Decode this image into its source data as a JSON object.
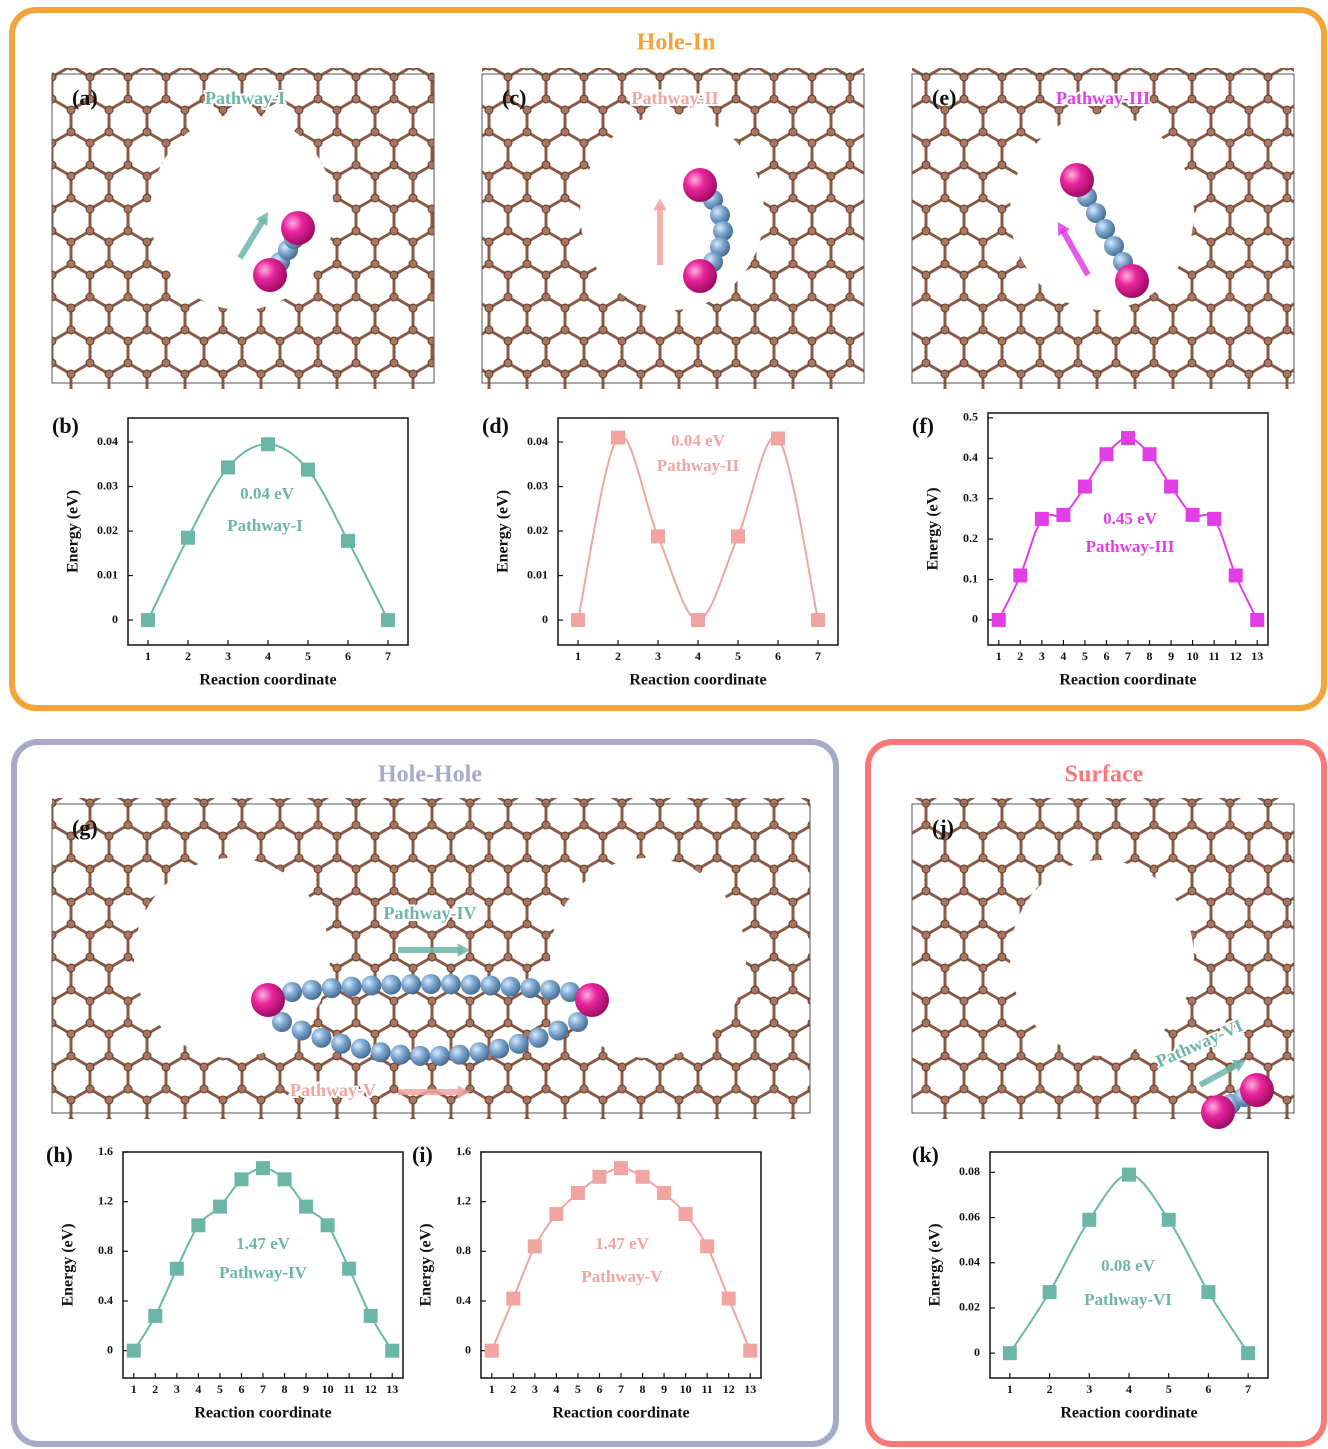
{
  "sections": [
    {
      "title": "Hole-In"
    },
    {
      "title": "Hole-Hole"
    },
    {
      "title": "Surface"
    }
  ],
  "structures": [
    {
      "label": "(a)",
      "pathways": [
        "Pathway-I"
      ]
    },
    {
      "label": "(c)",
      "pathways": [
        "Pathway-II"
      ]
    },
    {
      "label": "(e)",
      "pathways": [
        "Pathway-III"
      ]
    },
    {
      "label": "(g)",
      "pathways": [
        "Pathway-IV",
        "Pathway-V"
      ]
    },
    {
      "label": "(j)",
      "pathways": [
        "Pathway-VI"
      ]
    }
  ],
  "chart_data": [
    {
      "type": "line",
      "label": "(b)",
      "x_label": "Reaction coordinate",
      "y_label": "Energy (eV)",
      "color": "#6cb6a6",
      "x": [
        1,
        2,
        3,
        4,
        5,
        6,
        7
      ],
      "values": [
        0,
        0.0185,
        0.0343,
        0.0395,
        0.0338,
        0.0178,
        0
      ],
      "xlim": [
        0.5,
        7.5
      ],
      "xticks": [
        1,
        2,
        3,
        4,
        5,
        6,
        7
      ],
      "ylim": [
        -0.0056,
        0.0454
      ],
      "yticks": [
        0,
        0.01,
        0.02,
        0.03,
        0.04
      ],
      "annotations": [
        "0.04 eV",
        "Pathway-I"
      ]
    },
    {
      "type": "line",
      "label": "(d)",
      "x_label": "Reaction coordinate",
      "y_label": "Energy (eV)",
      "color": "#f2a4a0",
      "x": [
        1,
        2,
        3,
        4,
        5,
        6,
        7
      ],
      "values": [
        0,
        0.041,
        0.0188,
        0,
        0.0188,
        0.0408,
        0
      ],
      "xlim": [
        0.5,
        7.5
      ],
      "xticks": [
        1,
        2,
        3,
        4,
        5,
        6,
        7
      ],
      "ylim": [
        -0.0056,
        0.0454
      ],
      "yticks": [
        0,
        0.01,
        0.02,
        0.03,
        0.04
      ],
      "annotations": [
        "0.04 eV",
        "Pathway-II"
      ]
    },
    {
      "type": "line",
      "label": "(f)",
      "x_label": "Reaction coordinate",
      "y_label": "Energy (eV)",
      "color": "#e23ee6",
      "x": [
        1,
        2,
        3,
        4,
        5,
        6,
        7,
        8,
        9,
        10,
        11,
        12,
        13
      ],
      "values": [
        0,
        0.11,
        0.25,
        0.26,
        0.33,
        0.41,
        0.45,
        0.41,
        0.33,
        0.26,
        0.25,
        0.11,
        0
      ],
      "xlim": [
        0.5,
        13.5
      ],
      "xticks": [
        1,
        2,
        3,
        4,
        5,
        6,
        7,
        8,
        9,
        10,
        11,
        12,
        13
      ],
      "ylim": [
        -0.062,
        0.512
      ],
      "yticks": [
        0,
        0.1,
        0.2,
        0.3,
        0.4,
        0.5
      ],
      "annotations": [
        "0.45 eV",
        "Pathway-III"
      ]
    },
    {
      "type": "line",
      "label": "(h)",
      "x_label": "Reaction coordinate",
      "y_label": "Energy (eV)",
      "color": "#6cb6a6",
      "x": [
        1,
        2,
        3,
        4,
        5,
        6,
        7,
        8,
        9,
        10,
        11,
        12,
        13
      ],
      "values": [
        0,
        0.28,
        0.66,
        1.01,
        1.16,
        1.38,
        1.47,
        1.38,
        1.16,
        1.01,
        0.66,
        0.28,
        0
      ],
      "xlim": [
        0.5,
        13.5
      ],
      "xticks": [
        1,
        2,
        3,
        4,
        5,
        6,
        7,
        8,
        9,
        10,
        11,
        12,
        13
      ],
      "ylim": [
        -0.22,
        1.6
      ],
      "yticks": [
        0,
        0.4,
        0.8,
        1.2,
        1.6
      ],
      "annotations": [
        "1.47 eV",
        "Pathway-IV"
      ]
    },
    {
      "type": "line",
      "label": "(i)",
      "x_label": "Reaction coordinate",
      "y_label": "Energy (eV)",
      "color": "#f2a4a0",
      "x": [
        1,
        2,
        3,
        4,
        5,
        6,
        7,
        8,
        9,
        10,
        11,
        12,
        13
      ],
      "values": [
        0,
        0.42,
        0.84,
        1.1,
        1.27,
        1.4,
        1.47,
        1.4,
        1.27,
        1.1,
        0.84,
        0.42,
        0
      ],
      "xlim": [
        0.5,
        13.5
      ],
      "xticks": [
        1,
        2,
        3,
        4,
        5,
        6,
        7,
        8,
        9,
        10,
        11,
        12,
        13
      ],
      "ylim": [
        -0.22,
        1.6
      ],
      "yticks": [
        0,
        0.4,
        0.8,
        1.2,
        1.6
      ],
      "annotations": [
        "1.47 eV",
        "Pathway-V"
      ]
    },
    {
      "type": "line",
      "label": "(k)",
      "x_label": "Reaction coordinate",
      "y_label": "Energy (eV)",
      "color": "#6cb6a6",
      "x": [
        1,
        2,
        3,
        4,
        5,
        6,
        7
      ],
      "values": [
        0,
        0.027,
        0.059,
        0.079,
        0.059,
        0.027,
        0
      ],
      "xlim": [
        0.5,
        7.5
      ],
      "xticks": [
        1,
        2,
        3,
        4,
        5,
        6,
        7
      ],
      "ylim": [
        -0.011,
        0.089
      ],
      "yticks": [
        0,
        0.02,
        0.04,
        0.06,
        0.08
      ],
      "annotations": [
        "0.08 eV",
        "Pathway-VI"
      ]
    }
  ]
}
